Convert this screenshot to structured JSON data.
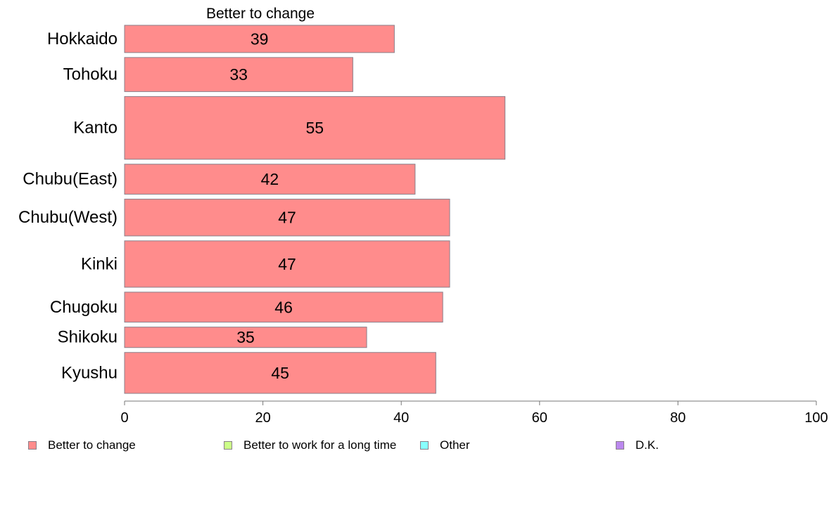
{
  "chart_data": {
    "type": "bar",
    "orientation": "horizontal",
    "title": "Better to change",
    "categories": [
      "Hokkaido",
      "Tohoku",
      "Kanto",
      "Chubu(East)",
      "Chubu(West)",
      "Kinki",
      "Chugoku",
      "Shikoku",
      "Kyushu"
    ],
    "series": [
      {
        "name": "Better to change",
        "values": [
          39,
          33,
          55,
          42,
          47,
          47,
          46,
          35,
          45
        ],
        "color": "#ff8c8c"
      }
    ],
    "category_weights": [
      1.0,
      1.25,
      2.3,
      1.1,
      1.35,
      1.7,
      1.1,
      0.75,
      1.5
    ],
    "xlim": [
      0,
      100
    ],
    "xticks": [
      0,
      20,
      40,
      60,
      80,
      100
    ],
    "grid": false
  },
  "legend": {
    "position": "bottom",
    "items": [
      {
        "label": "Better to change",
        "color": "#ff8c8c"
      },
      {
        "label": "Better to work for a long time",
        "color": "#ccff88"
      },
      {
        "label": "Other",
        "color": "#88ffff"
      },
      {
        "label": "D.K.",
        "color": "#bb88ee"
      }
    ]
  }
}
